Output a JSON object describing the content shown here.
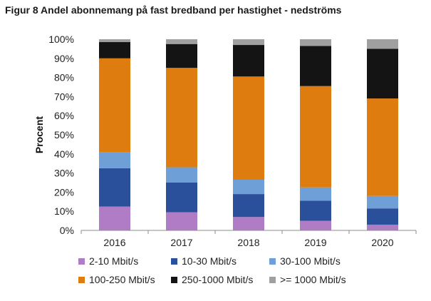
{
  "chart_data": {
    "type": "bar",
    "stacked": true,
    "title": "Figur 8 Andel abonnemang på fast bredband per hastighet - nedströms",
    "xlabel": "",
    "ylabel": "Procent",
    "ylim": [
      0,
      100
    ],
    "ytick_labels": [
      "0%",
      "10%",
      "20%",
      "30%",
      "40%",
      "50%",
      "60%",
      "70%",
      "80%",
      "90%",
      "100%"
    ],
    "categories": [
      "2016",
      "2017",
      "2018",
      "2019",
      "2020"
    ],
    "legend_position": "bottom",
    "grid": false,
    "series": [
      {
        "name": "2-10 Mbit/s",
        "color": "#b07cc6",
        "values": [
          12.5,
          9.5,
          7,
          5,
          3
        ]
      },
      {
        "name": "10-30 Mbit/s",
        "color": "#2a4f9b",
        "values": [
          20,
          15.5,
          12,
          10.5,
          8.5
        ]
      },
      {
        "name": "30-100 Mbit/s",
        "color": "#6e9fd6",
        "values": [
          8.5,
          8,
          7.5,
          7,
          6.5
        ]
      },
      {
        "name": "100-250 Mbit/s",
        "color": "#de7c10",
        "values": [
          49,
          52,
          54,
          53,
          51
        ]
      },
      {
        "name": "250-1000 Mbit/s",
        "color": "#141414",
        "values": [
          8.5,
          12.5,
          16.5,
          21,
          26
        ]
      },
      {
        "name": ">= 1000 Mbit/s",
        "color": "#a0a0a0",
        "values": [
          1.5,
          2.5,
          3,
          3.5,
          5
        ]
      }
    ]
  }
}
